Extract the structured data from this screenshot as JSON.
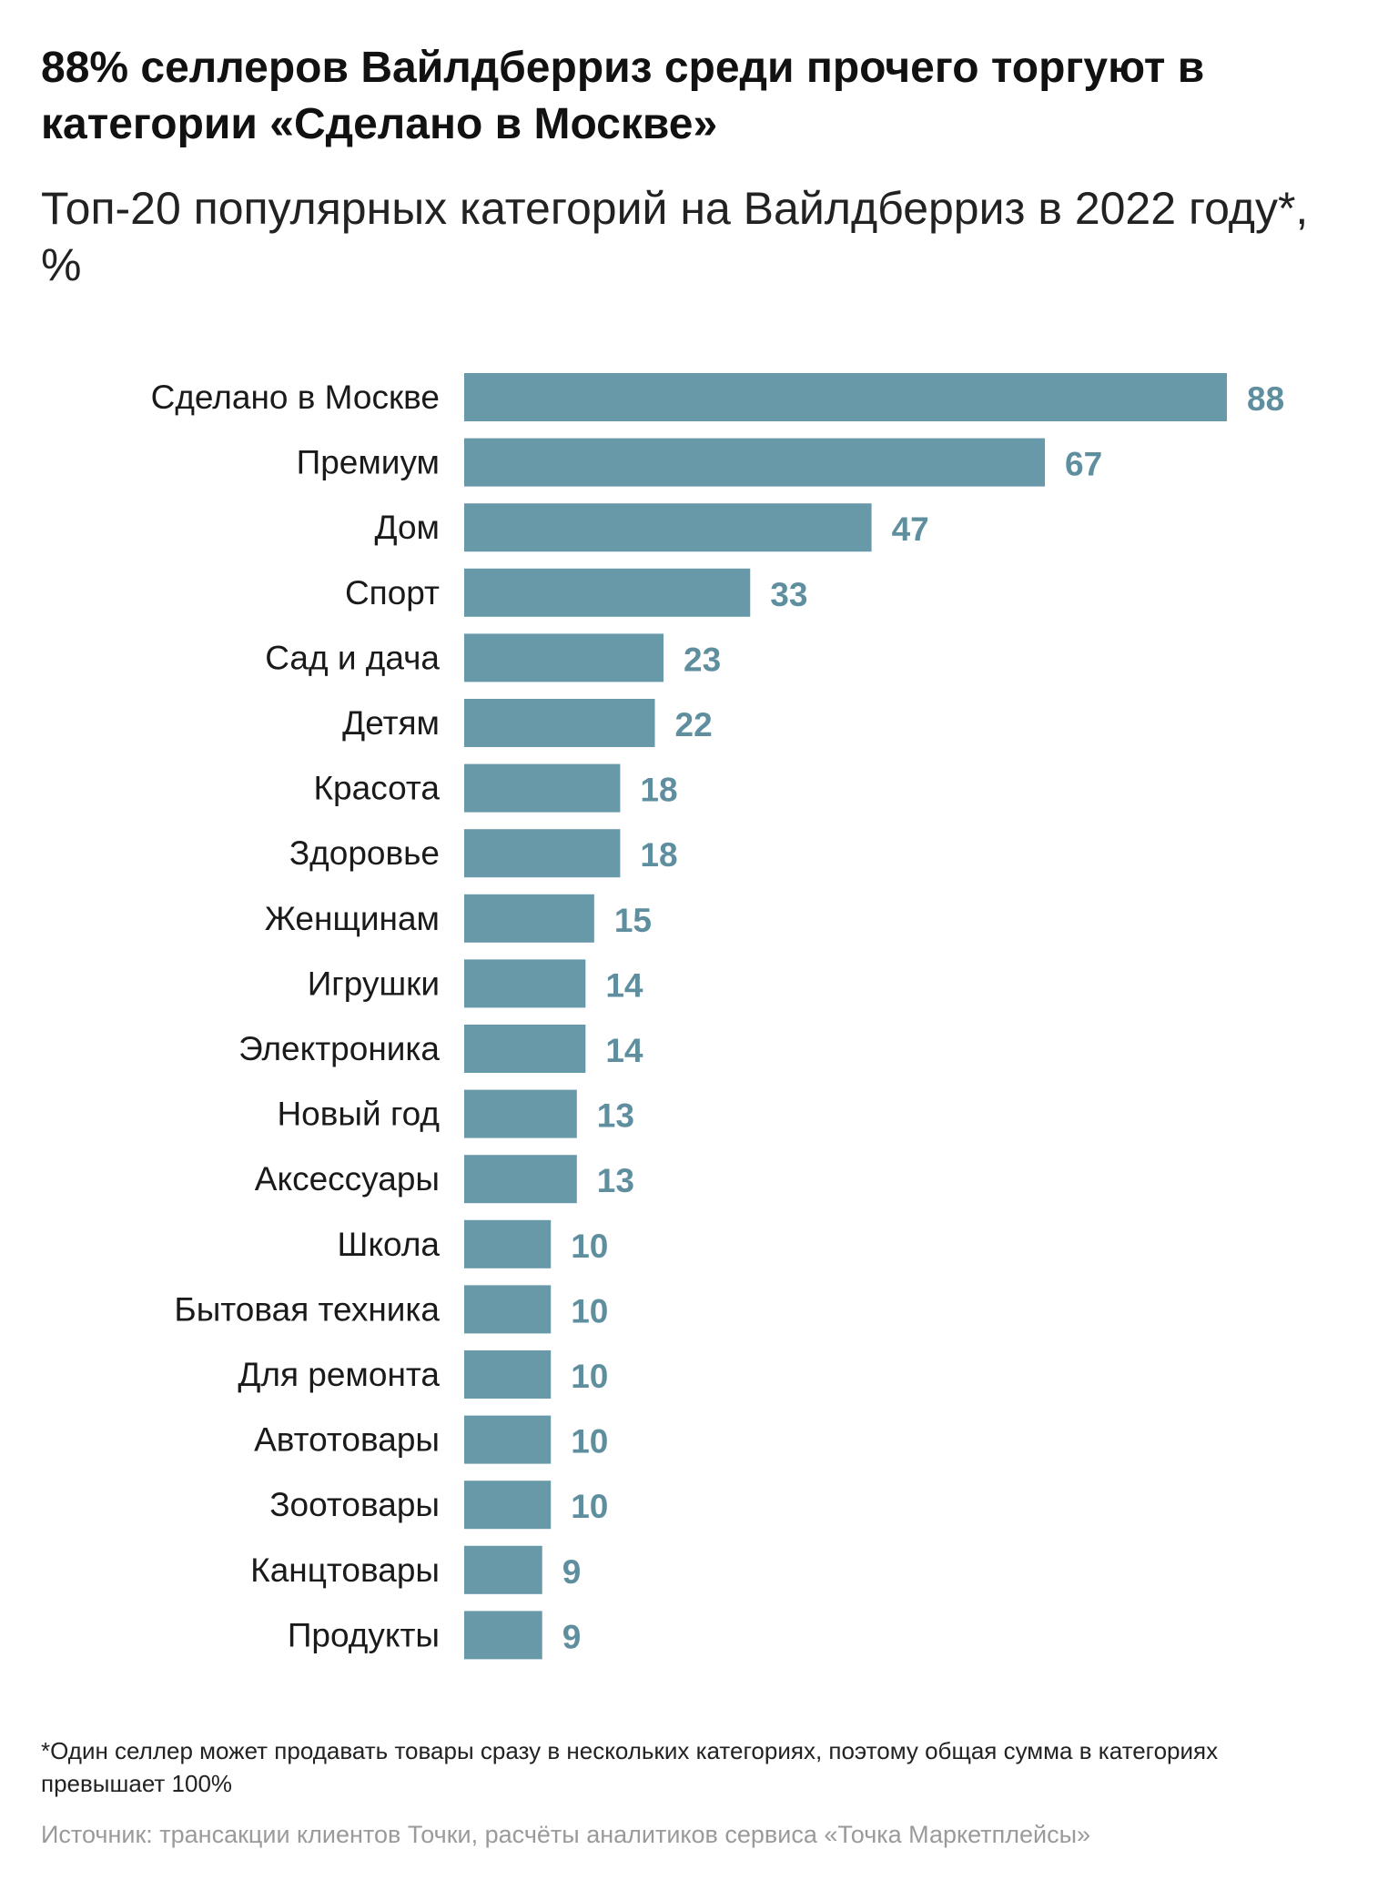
{
  "header": {
    "title": "88% селлеров Вайлдберриз среди прочего торгуют в категории «Сделано в Москве»",
    "subtitle": "Топ-20 популярных категорий на Вайлдберриз в 2022 году*, %"
  },
  "chart_data": {
    "type": "bar",
    "orientation": "horizontal",
    "title": "88% селлеров Вайлдберриз среди прочего торгуют в категории «Сделано в Москве»",
    "subtitle": "Топ-20 популярных категорий на Вайлдберриз в 2022 году*, %",
    "categories": [
      "Сделано в Москве",
      "Премиум",
      "Дом",
      "Спорт",
      "Сад и дача",
      "Детям",
      "Красота",
      "Здоровье",
      "Женщинам",
      "Игрушки",
      "Электроника",
      "Новый год",
      "Аксессуары",
      "Школа",
      "Бытовая техника",
      "Для ремонта",
      "Автотовары",
      "Зоотовары",
      "Канцтовары",
      "Продукты"
    ],
    "values": [
      88,
      67,
      47,
      33,
      23,
      22,
      18,
      18,
      15,
      14,
      14,
      13,
      13,
      10,
      10,
      10,
      10,
      10,
      9,
      9
    ],
    "xlim": [
      0,
      88
    ],
    "grid": false,
    "legend": "none",
    "data_labels": true
  },
  "colors": {
    "bar": "#6899a8",
    "value_label": "#5f8f9f",
    "category_label": "#1a1a1a",
    "source_text": "#9a9a9a"
  },
  "footer": {
    "footnote": "*Один селлер может продавать товары сразу в нескольких категориях, поэтому общая сумма в категориях превышает 100%",
    "source": "Источник: трансакции клиентов Точки, расчёты аналитиков сервиса «Точка Маркетплейсы»"
  }
}
